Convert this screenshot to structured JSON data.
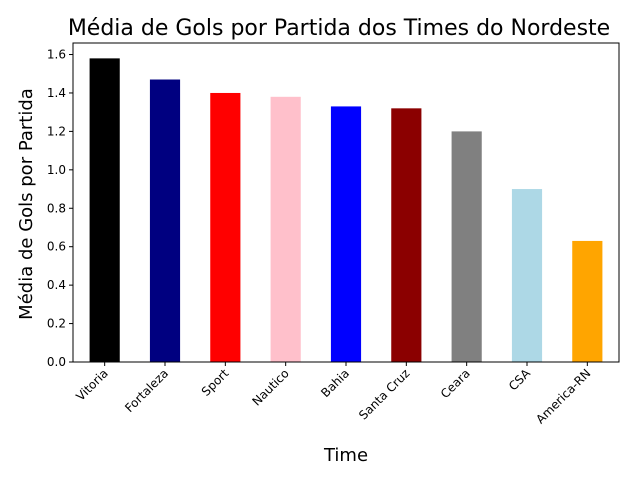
{
  "chart_data": {
    "type": "bar",
    "title": "Média de Gols por Partida dos Times do Nordeste",
    "xlabel": "Time",
    "ylabel": "Média de Gols por Partida",
    "categories": [
      "Vitoria",
      "Fortaleza",
      "Sport",
      "Nautico",
      "Bahia",
      "Santa Cruz",
      "Ceara",
      "CSA",
      "America-RN"
    ],
    "values": [
      1.58,
      1.47,
      1.4,
      1.38,
      1.33,
      1.32,
      1.2,
      0.9,
      0.63
    ],
    "colors": [
      "#000000",
      "#000080",
      "#ff0000",
      "#ffc0cb",
      "#0000ff",
      "#8b0000",
      "#808080",
      "#add8e6",
      "#ffa500"
    ],
    "ylim": [
      0,
      1.66
    ],
    "yticks": [
      "0.0",
      "0.2",
      "0.4",
      "0.6",
      "0.8",
      "1.0",
      "1.2",
      "1.4",
      "1.6"
    ],
    "grid": false,
    "legend": false
  }
}
